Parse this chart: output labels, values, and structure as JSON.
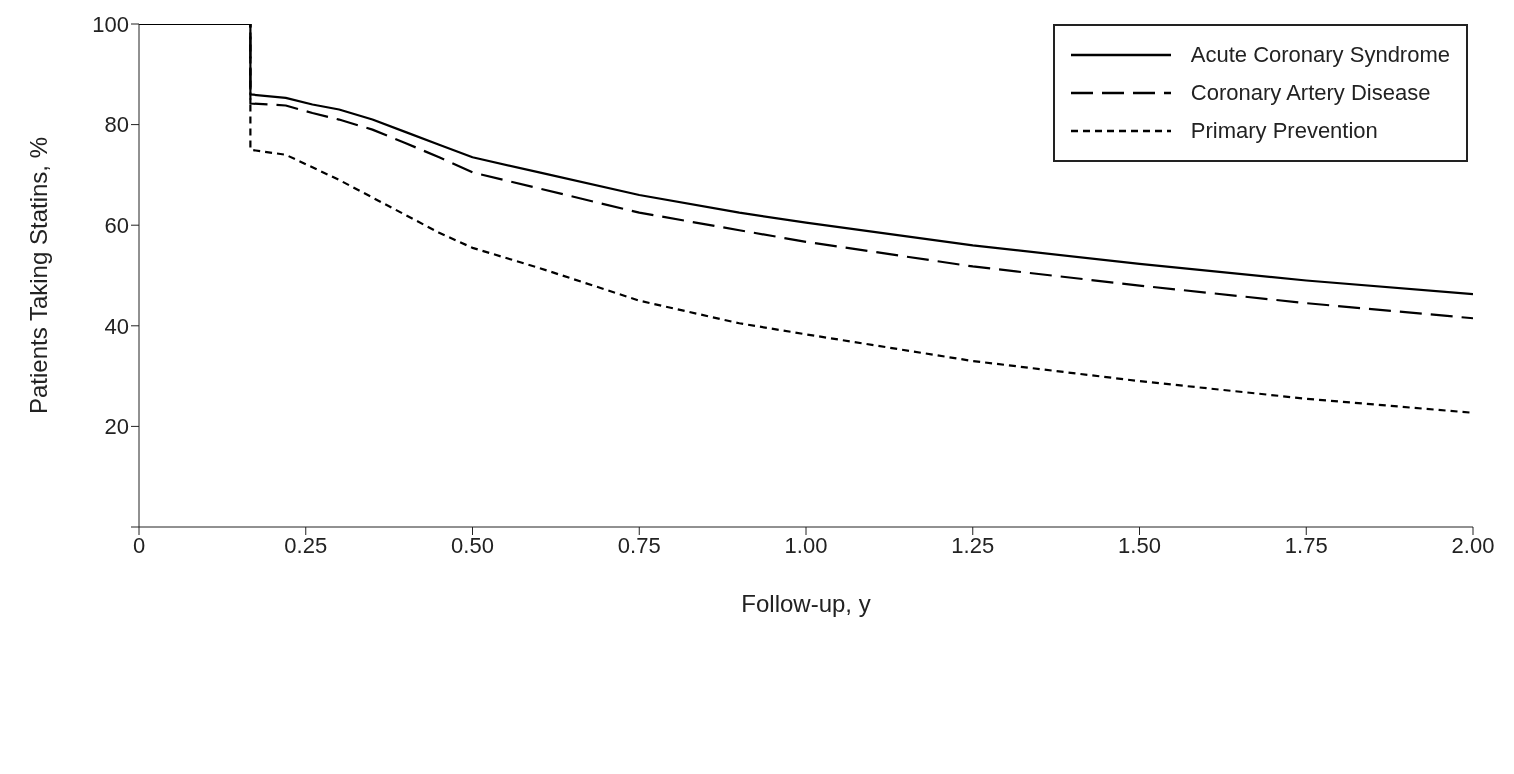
{
  "chart_data": {
    "type": "line",
    "xlabel": "Follow-up, y",
    "ylabel": "Patients Taking Statins, %",
    "series": [
      {
        "name": "Acute Coronary Syndrome",
        "color": "#000000",
        "line_style": "solid",
        "x": [
          0,
          0.167,
          0.167,
          0.22,
          0.26,
          0.3,
          0.35,
          0.4,
          0.45,
          0.5,
          0.6,
          0.75,
          0.9,
          1.0,
          1.25,
          1.5,
          1.75,
          2.0
        ],
        "values": [
          100,
          100,
          86,
          85.3,
          84,
          83,
          81,
          78.5,
          76,
          73.5,
          70.5,
          66,
          62.5,
          60.5,
          56,
          52.3,
          49,
          46.3
        ]
      },
      {
        "name": "Coronary Artery Disease",
        "color": "#000000",
        "line_style": "dashed",
        "x": [
          0,
          0.167,
          0.167,
          0.22,
          0.26,
          0.3,
          0.35,
          0.4,
          0.45,
          0.5,
          0.6,
          0.75,
          0.9,
          1.0,
          1.25,
          1.5,
          1.75,
          2.0
        ],
        "values": [
          100,
          100,
          84.2,
          83.8,
          82.3,
          81,
          79,
          76.3,
          73.5,
          70.5,
          67.3,
          62.5,
          59,
          56.7,
          51.8,
          48,
          44.5,
          41.5
        ]
      },
      {
        "name": "Primary Prevention",
        "color": "#000000",
        "line_style": "dotted",
        "x": [
          0,
          0.167,
          0.167,
          0.22,
          0.26,
          0.3,
          0.35,
          0.4,
          0.45,
          0.5,
          0.6,
          0.75,
          0.9,
          1.0,
          1.25,
          1.5,
          1.75,
          2.0
        ],
        "values": [
          100,
          100,
          75,
          74,
          71.5,
          69,
          65.5,
          62,
          58.5,
          55.5,
          51.5,
          45,
          40.5,
          38.3,
          33,
          29,
          25.5,
          22.7
        ]
      }
    ],
    "xlim": [
      0,
      2
    ],
    "xticks": [
      0,
      0.25,
      {
        "value": 0.5,
        "label": "0.50"
      },
      0.75,
      {
        "value": 1,
        "label": "1.00"
      },
      1.25,
      {
        "value": 1.5,
        "label": "1.50"
      },
      1.75,
      {
        "value": 2,
        "label": "2.00"
      }
    ],
    "ylim": [
      0,
      100
    ],
    "yticks": [
      {
        "value": 0,
        "label": null
      },
      20,
      40,
      60,
      80,
      100
    ],
    "grid": false,
    "legend": "top right",
    "marker": "none"
  }
}
